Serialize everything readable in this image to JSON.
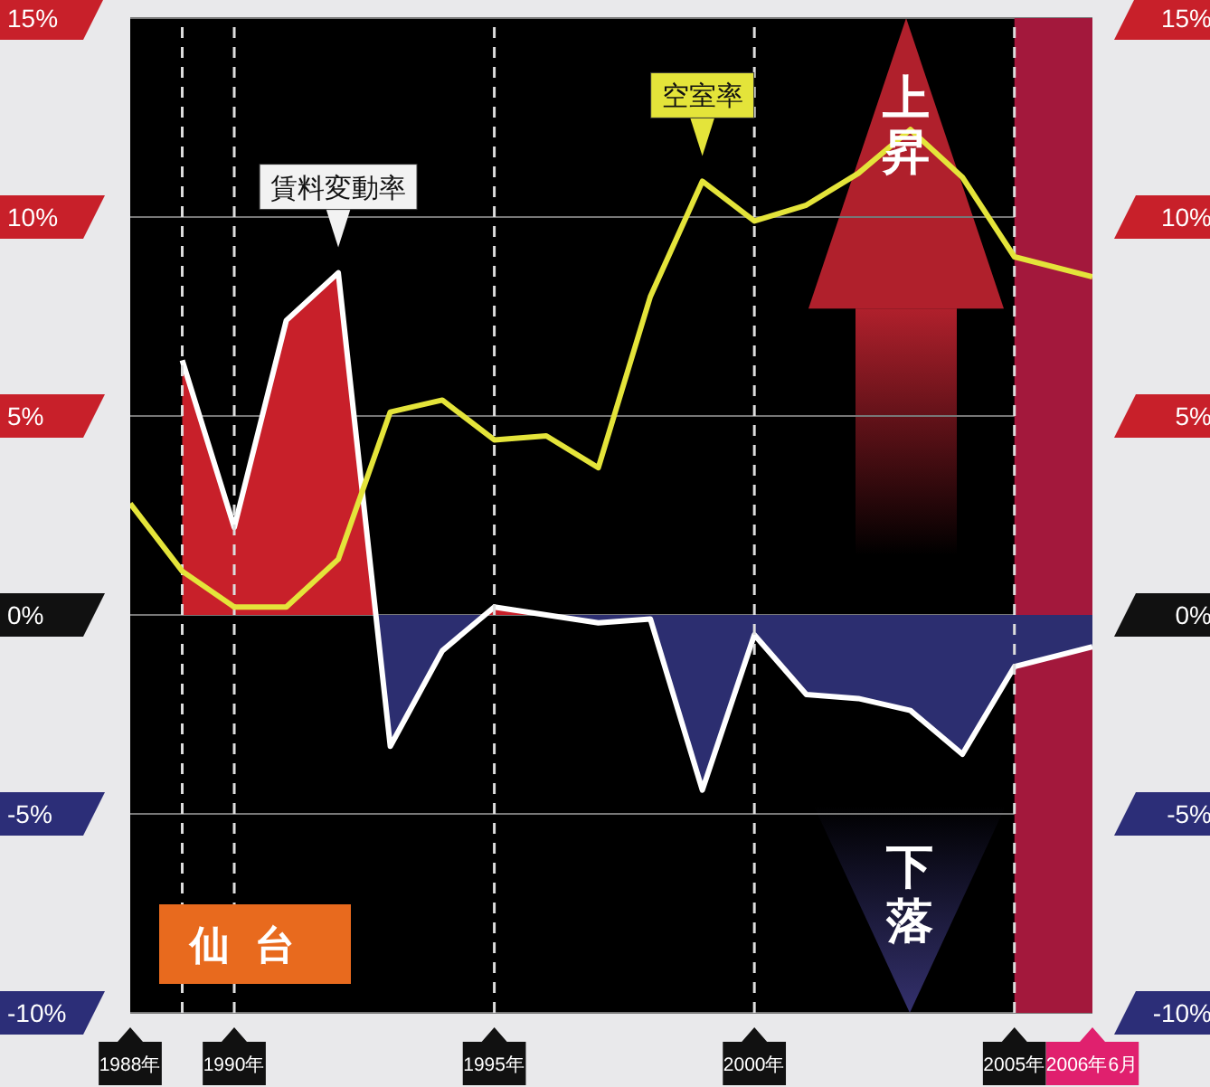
{
  "chart_data": {
    "type": "line",
    "x": [
      1988,
      1989,
      1990,
      1991,
      1992,
      1993,
      1994,
      1995,
      1996,
      1997,
      1998,
      1999,
      2000,
      2001,
      2002,
      2003,
      2004,
      2005,
      2006.5
    ],
    "series": [
      {
        "name": "空室率",
        "color": "#e4e43a",
        "values": [
          2.8,
          1.1,
          0.2,
          0.2,
          1.4,
          5.1,
          5.4,
          4.4,
          4.5,
          3.7,
          8.0,
          10.9,
          9.9,
          10.3,
          11.1,
          12.2,
          11.0,
          9.0,
          8.5
        ]
      },
      {
        "name": "賃料変動率",
        "type": "area",
        "color": "#ffffff",
        "colors": [
          null,
          "#c8202a",
          "#c8202a",
          "#c8202a",
          "#c8202a",
          "#2c2e70",
          "#2c2e70",
          "#c8202a",
          "#c8202a",
          "#2c2e70",
          "#2c2e70",
          "#2c2e70",
          "#2c2e70",
          "#2c2e70",
          "#2c2e70",
          "#2c2e70",
          "#2c2e70",
          "#2c2e70",
          "#2c2e70"
        ],
        "values": [
          null,
          6.4,
          2.2,
          7.4,
          8.6,
          -3.3,
          -0.9,
          0.2,
          0.0,
          -0.2,
          -0.1,
          -4.4,
          -0.5,
          -2.0,
          -2.1,
          -2.4,
          -3.5,
          -1.3,
          -0.8
        ]
      }
    ],
    "xlim": [
      1988,
      2006.5
    ],
    "xticks": [
      {
        "value": 1988,
        "label": "1988年"
      },
      {
        "value": 1990,
        "label": "1990年"
      },
      {
        "value": 1995,
        "label": "1995年"
      },
      {
        "value": 2000,
        "label": "2000年"
      },
      {
        "value": 2005,
        "label": "2005年"
      },
      {
        "value": 2006.5,
        "label": "2006年6月"
      }
    ],
    "ylim": [
      -10,
      15
    ],
    "yticks": [
      {
        "value": 15,
        "label": "15%"
      },
      {
        "value": 10,
        "label": "10%"
      },
      {
        "value": 5,
        "label": "5%"
      },
      {
        "value": 0,
        "label": "0%"
      },
      {
        "value": -5,
        "label": "-5%"
      },
      {
        "value": -10,
        "label": "-10%"
      }
    ],
    "y2lim": [
      -10,
      15
    ],
    "y2ticks": [
      {
        "value": 15,
        "label": "15%"
      },
      {
        "value": 10,
        "label": "10%"
      },
      {
        "value": 5,
        "label": "5%"
      },
      {
        "value": 0,
        "label": "0%"
      },
      {
        "value": -5,
        "label": "-5%"
      },
      {
        "value": -10,
        "label": "-10%"
      }
    ],
    "grid": "y",
    "legend": false,
    "bands": [
      {
        "axis": "x",
        "from": 2005,
        "to": 2006.5,
        "color": "#a3183c"
      }
    ],
    "ref_lines": [
      {
        "axis": "x",
        "value": 1989,
        "line_style": "dashed"
      },
      {
        "axis": "x",
        "value": 1990,
        "line_style": "dashed"
      },
      {
        "axis": "x",
        "value": 1995,
        "line_style": "dashed"
      },
      {
        "axis": "x",
        "value": 2000,
        "line_style": "dashed"
      },
      {
        "axis": "x",
        "value": 2005,
        "line_style": "dashed"
      }
    ],
    "annotations": [
      "上昇",
      "下落",
      "仙台"
    ]
  }
}
